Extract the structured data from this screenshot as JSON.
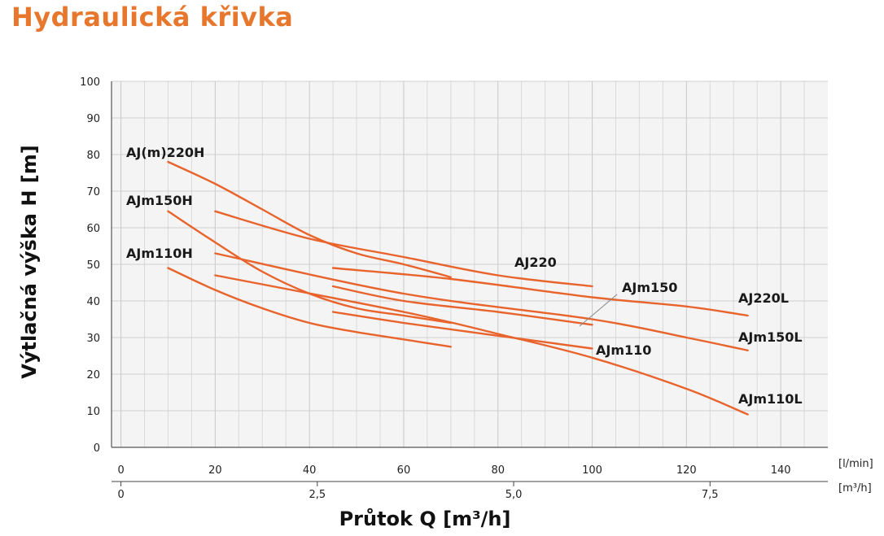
{
  "page_title": "Hydraulická křivka",
  "chart_data": {
    "type": "line",
    "title": "Hydraulická křivka",
    "ylabel": "Výtlačná výška H [m]",
    "xlabel": "Průtok Q [m³/h]",
    "ylim": [
      0,
      100
    ],
    "y_ticks": [
      "0",
      "10",
      "20",
      "30",
      "40",
      "50",
      "60",
      "70",
      "80",
      "90",
      "100"
    ],
    "x_lmin": {
      "unit": "[l/min]",
      "range": [
        -2,
        150
      ],
      "ticks": [
        {
          "value": 0,
          "label": "0"
        },
        {
          "value": 20,
          "label": "20"
        },
        {
          "value": 40,
          "label": "40"
        },
        {
          "value": 60,
          "label": "60"
        },
        {
          "value": 80,
          "label": "80"
        },
        {
          "value": 100,
          "label": "100"
        },
        {
          "value": 120,
          "label": "120"
        },
        {
          "value": 140,
          "label": "140"
        }
      ]
    },
    "x_m3h": {
      "unit": "[m³/h]",
      "ticks": [
        {
          "value": 0,
          "label": "0"
        },
        {
          "value": 2.5,
          "label": "2,5"
        },
        {
          "value": 5.0,
          "label": "5,0"
        },
        {
          "value": 7.5,
          "label": "7,5"
        }
      ]
    },
    "grid": true,
    "line_color": "#e8642c",
    "series": [
      {
        "name": "AJ(m)220H",
        "x_lmin": [
          10,
          20,
          30,
          40,
          50,
          60,
          70
        ],
        "y": [
          78,
          72,
          65,
          58,
          53,
          50,
          46.5
        ]
      },
      {
        "name": "AJm150H",
        "x_lmin": [
          10,
          20,
          30,
          40,
          50,
          60,
          70
        ],
        "y": [
          64.5,
          56,
          48,
          42,
          38,
          36,
          34
        ]
      },
      {
        "name": "AJm110H",
        "x_lmin": [
          10,
          20,
          30,
          40,
          50,
          60,
          70
        ],
        "y": [
          49,
          43,
          38,
          34,
          31.5,
          29.5,
          27.5
        ]
      },
      {
        "name": "AJ220",
        "x_lmin": [
          20,
          40,
          60,
          80,
          100
        ],
        "y": [
          64.5,
          57,
          52,
          47,
          44
        ]
      },
      {
        "name": "AJm150",
        "x_lmin": [
          45,
          60,
          80,
          100
        ],
        "y": [
          44,
          40,
          37,
          33.5
        ]
      },
      {
        "name": "AJm110",
        "x_lmin": [
          45,
          60,
          80,
          100
        ],
        "y": [
          37,
          34,
          30.5,
          27
        ]
      },
      {
        "name": "AJ220L",
        "x_lmin": [
          45,
          70,
          100,
          120,
          133
        ],
        "y": [
          49,
          46,
          41,
          38.5,
          36
        ]
      },
      {
        "name": "AJm150L",
        "x_lmin": [
          20,
          60,
          100,
          120,
          133
        ],
        "y": [
          53,
          42,
          35,
          30,
          26.5
        ]
      },
      {
        "name": "AJm110L",
        "x_lmin": [
          20,
          60,
          80,
          100,
          120,
          133
        ],
        "y": [
          47,
          37,
          31,
          24.5,
          16,
          9
        ]
      }
    ],
    "annotations": [
      {
        "text": "AJ(m)220H"
      },
      {
        "text": "AJm150H"
      },
      {
        "text": "AJm110H"
      },
      {
        "text": "AJ220"
      },
      {
        "text": "AJm150"
      },
      {
        "text": "AJm110"
      },
      {
        "text": "AJ220L"
      },
      {
        "text": "AJm150L"
      },
      {
        "text": "AJm110L"
      }
    ]
  }
}
